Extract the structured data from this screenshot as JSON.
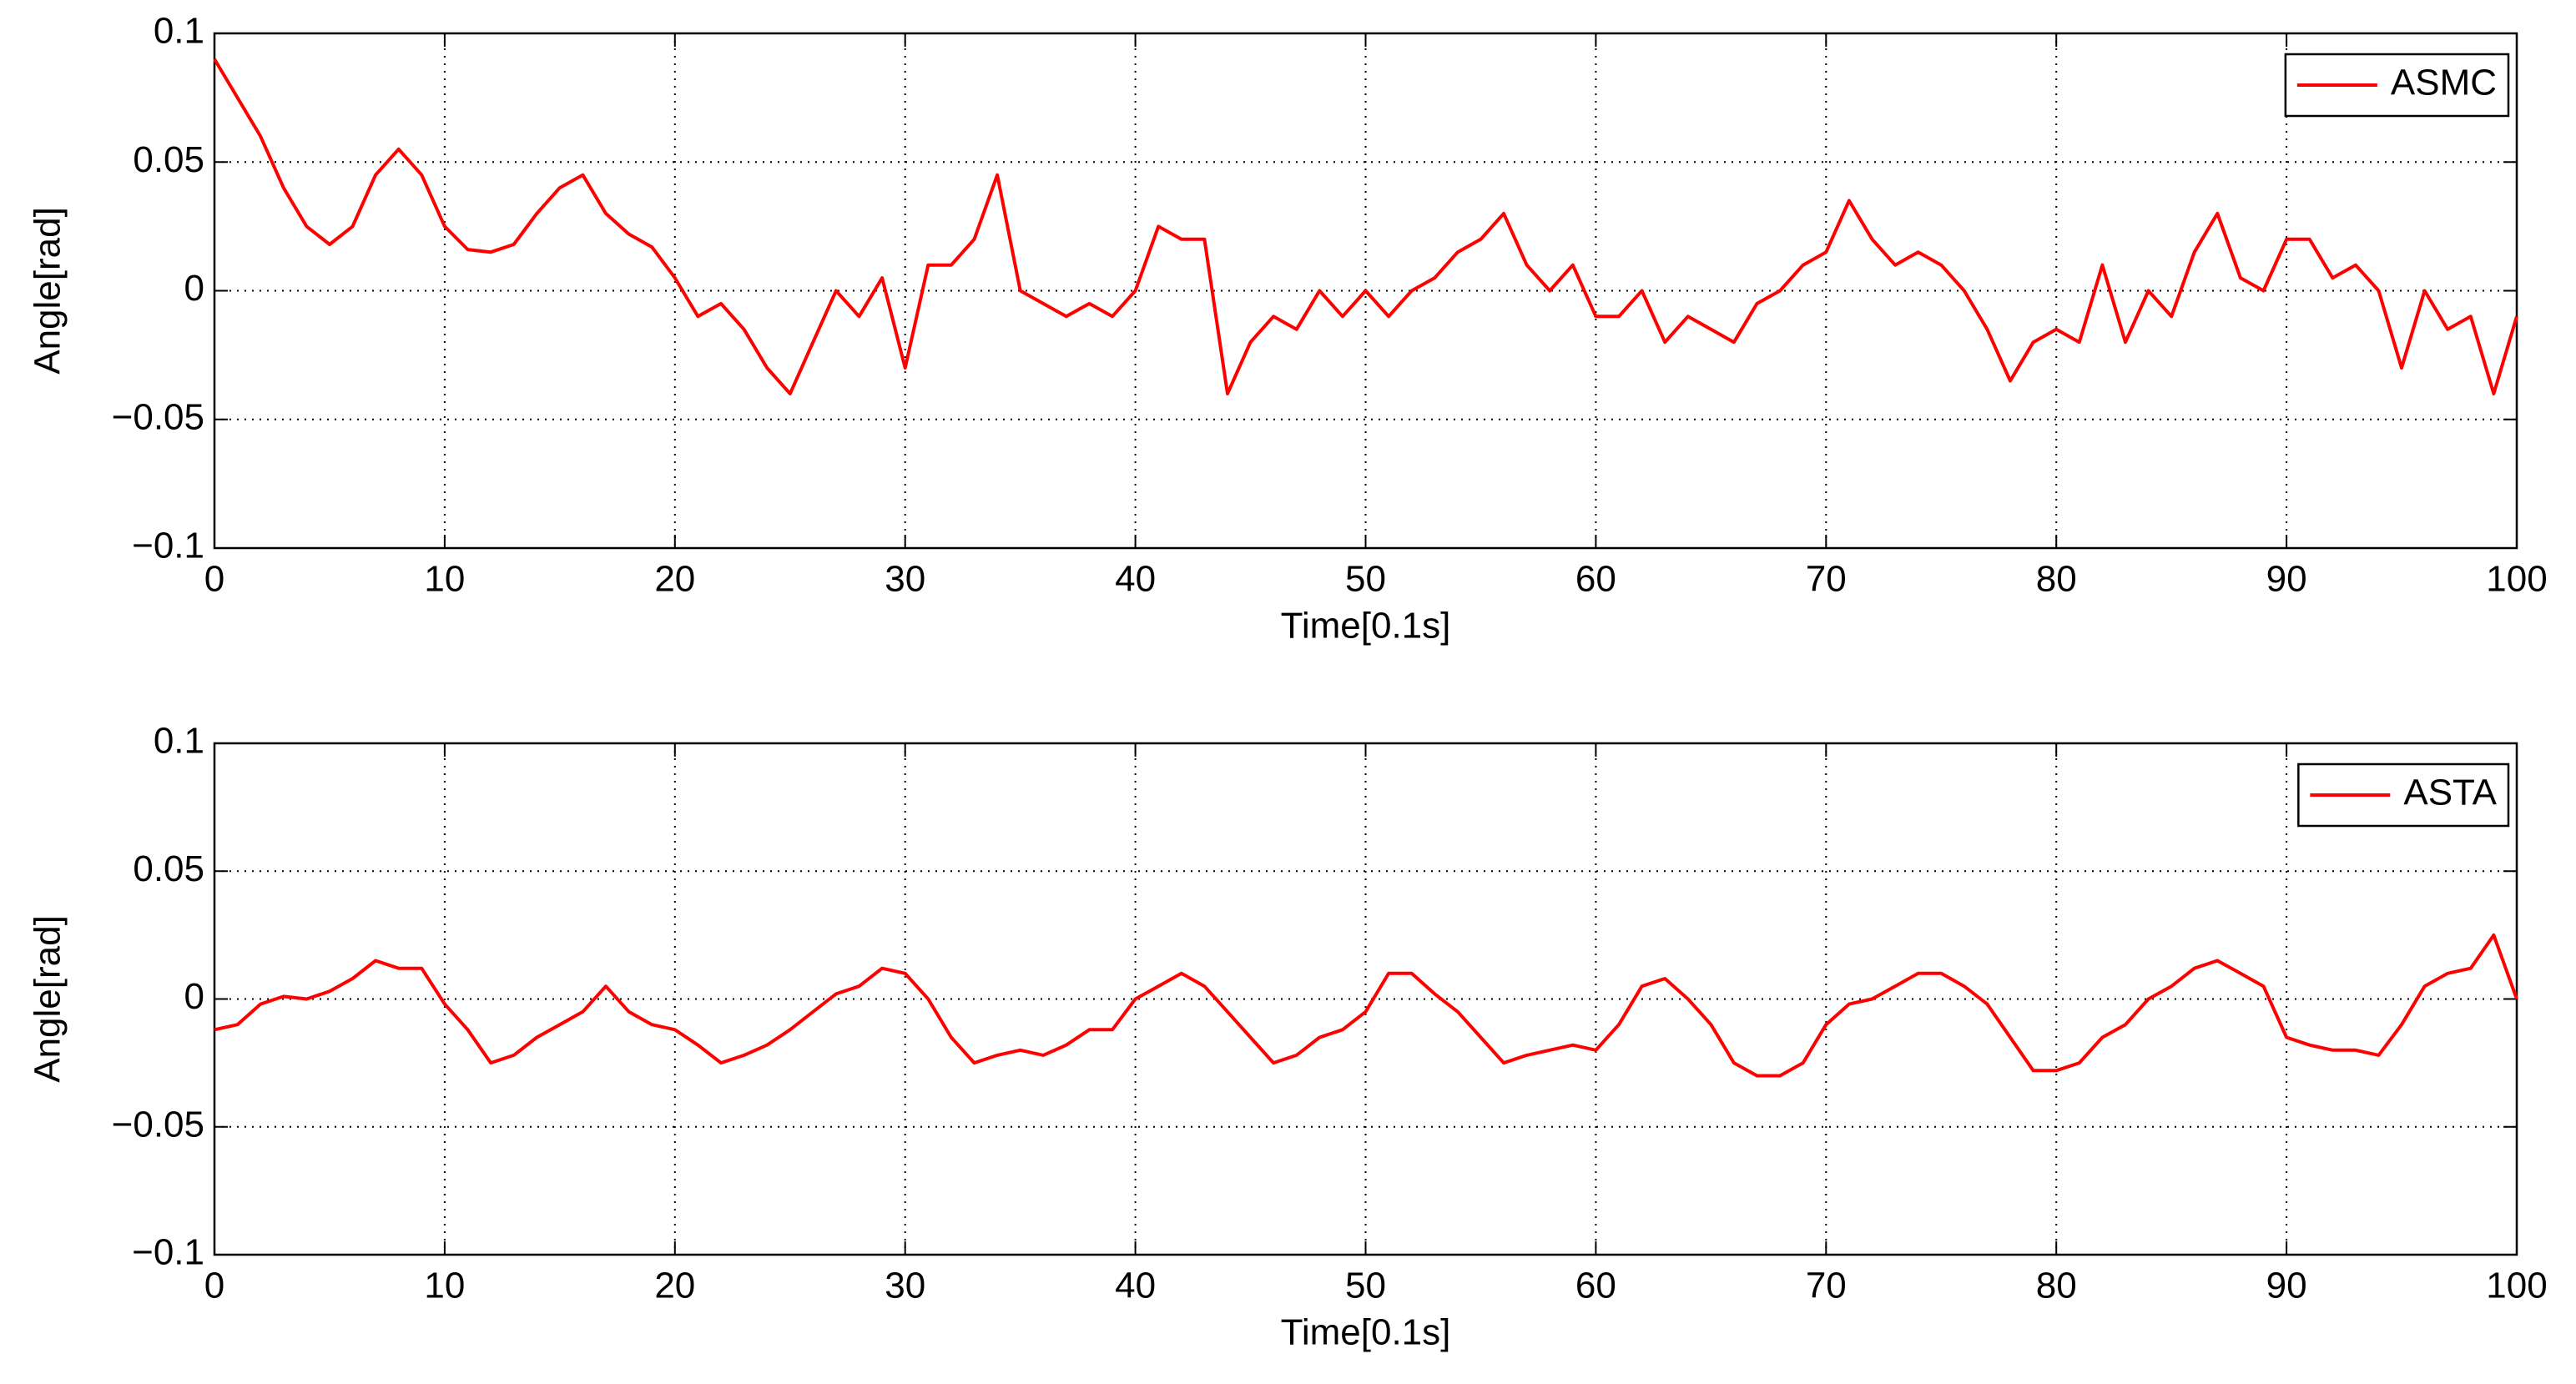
{
  "chart_data": [
    {
      "type": "line",
      "xlabel": "Time[0.1s]",
      "ylabel": "Angle[rad]",
      "x": [
        0,
        1,
        2,
        3,
        4,
        5,
        6,
        7,
        8,
        9,
        10,
        11,
        12,
        13,
        14,
        15,
        16,
        17,
        18,
        19,
        20,
        21,
        22,
        23,
        24,
        25,
        26,
        27,
        28,
        29,
        30,
        31,
        32,
        33,
        34,
        35,
        36,
        37,
        38,
        39,
        40,
        41,
        42,
        43,
        44,
        45,
        46,
        47,
        48,
        49,
        50,
        51,
        52,
        53,
        54,
        55,
        56,
        57,
        58,
        59,
        60,
        61,
        62,
        63,
        64,
        65,
        66,
        67,
        68,
        69,
        70,
        71,
        72,
        73,
        74,
        75,
        76,
        77,
        78,
        79,
        80,
        81,
        82,
        83,
        84,
        85,
        86,
        87,
        88,
        89,
        90,
        91,
        92,
        93,
        94,
        95,
        96,
        97,
        98,
        99,
        100
      ],
      "series": [
        {
          "name": "ASMC",
          "color": "#ff0000",
          "values": [
            0.09,
            0.075,
            0.06,
            0.04,
            0.025,
            0.018,
            0.025,
            0.045,
            0.055,
            0.045,
            0.025,
            0.016,
            0.015,
            0.018,
            0.03,
            0.04,
            0.045,
            0.03,
            0.022,
            0.017,
            0.005,
            -0.01,
            -0.005,
            -0.015,
            -0.03,
            -0.04,
            -0.02,
            0.0,
            -0.01,
            0.005,
            -0.03,
            0.01,
            0.01,
            0.02,
            0.045,
            0.0,
            -0.005,
            -0.01,
            -0.005,
            -0.01,
            0.0,
            0.025,
            0.02,
            0.02,
            -0.04,
            -0.02,
            -0.01,
            -0.015,
            0.0,
            -0.01,
            0.0,
            -0.01,
            0.0,
            0.005,
            0.015,
            0.02,
            0.03,
            0.01,
            0.0,
            0.01,
            -0.01,
            -0.01,
            0.0,
            -0.02,
            -0.01,
            -0.015,
            -0.02,
            -0.005,
            0.0,
            0.01,
            0.015,
            0.035,
            0.02,
            0.01,
            0.015,
            0.01,
            0.0,
            -0.015,
            -0.035,
            -0.02,
            -0.015,
            -0.02,
            0.01,
            -0.02,
            0.0,
            -0.01,
            0.015,
            0.03,
            0.005,
            0.0,
            0.02,
            0.02,
            0.005,
            0.01,
            0.0,
            -0.03,
            0.0,
            -0.015,
            -0.01,
            -0.04,
            -0.01
          ]
        }
      ],
      "xlim": [
        0,
        100
      ],
      "ylim": [
        -0.1,
        0.1
      ],
      "xticks": [
        0,
        10,
        20,
        30,
        40,
        50,
        60,
        70,
        80,
        90,
        100
      ],
      "yticks": [
        {
          "value": -0.1,
          "label": "−0.1"
        },
        {
          "value": -0.05,
          "label": "−0.05"
        },
        0,
        0.05,
        0.1
      ],
      "grid": true,
      "legend": "upper right"
    },
    {
      "type": "line",
      "xlabel": "Time[0.1s]",
      "ylabel": "Angle[rad]",
      "x": [
        0,
        1,
        2,
        3,
        4,
        5,
        6,
        7,
        8,
        9,
        10,
        11,
        12,
        13,
        14,
        15,
        16,
        17,
        18,
        19,
        20,
        21,
        22,
        23,
        24,
        25,
        26,
        27,
        28,
        29,
        30,
        31,
        32,
        33,
        34,
        35,
        36,
        37,
        38,
        39,
        40,
        41,
        42,
        43,
        44,
        45,
        46,
        47,
        48,
        49,
        50,
        51,
        52,
        53,
        54,
        55,
        56,
        57,
        58,
        59,
        60,
        61,
        62,
        63,
        64,
        65,
        66,
        67,
        68,
        69,
        70,
        71,
        72,
        73,
        74,
        75,
        76,
        77,
        78,
        79,
        80,
        81,
        82,
        83,
        84,
        85,
        86,
        87,
        88,
        89,
        90,
        91,
        92,
        93,
        94,
        95,
        96,
        97,
        98,
        99,
        100
      ],
      "series": [
        {
          "name": "ASTA",
          "color": "#ff0000",
          "values": [
            -0.012,
            -0.01,
            -0.002,
            0.001,
            0.0,
            0.003,
            0.008,
            0.015,
            0.012,
            0.012,
            -0.002,
            -0.012,
            -0.025,
            -0.022,
            -0.015,
            -0.01,
            -0.005,
            0.005,
            -0.005,
            -0.01,
            -0.012,
            -0.018,
            -0.025,
            -0.022,
            -0.018,
            -0.012,
            -0.005,
            0.002,
            0.005,
            0.012,
            0.01,
            0.0,
            -0.015,
            -0.025,
            -0.022,
            -0.02,
            -0.022,
            -0.018,
            -0.012,
            -0.012,
            0.0,
            0.005,
            0.01,
            0.005,
            -0.005,
            -0.015,
            -0.025,
            -0.022,
            -0.015,
            -0.012,
            -0.005,
            0.01,
            0.01,
            0.002,
            -0.005,
            -0.015,
            -0.025,
            -0.022,
            -0.02,
            -0.018,
            -0.02,
            -0.01,
            0.005,
            0.008,
            0.0,
            -0.01,
            -0.025,
            -0.03,
            -0.03,
            -0.025,
            -0.01,
            -0.002,
            0.0,
            0.005,
            0.01,
            0.01,
            0.005,
            -0.002,
            -0.015,
            -0.028,
            -0.028,
            -0.025,
            -0.015,
            -0.01,
            0.0,
            0.005,
            0.012,
            0.015,
            0.01,
            0.005,
            -0.015,
            -0.018,
            -0.02,
            -0.02,
            -0.022,
            -0.01,
            0.005,
            0.01,
            0.012,
            0.025,
            0.0
          ]
        }
      ],
      "xlim": [
        0,
        100
      ],
      "ylim": [
        -0.1,
        0.1
      ],
      "xticks": [
        0,
        10,
        20,
        30,
        40,
        50,
        60,
        70,
        80,
        90,
        100
      ],
      "yticks": [
        {
          "value": -0.1,
          "label": "−0.1"
        },
        {
          "value": -0.05,
          "label": "−0.05"
        },
        0,
        0.05,
        0.1
      ],
      "grid": true,
      "legend": "upper right"
    }
  ]
}
